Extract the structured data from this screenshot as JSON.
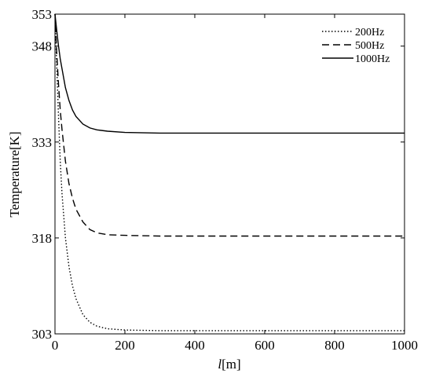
{
  "chart_data": {
    "type": "line",
    "title": "",
    "xlabel_italic": "l",
    "xlabel_rest": "[m]",
    "ylabel": "Temperature[K]",
    "xlim": [
      0,
      1000
    ],
    "ylim": [
      303,
      353
    ],
    "xticks": [
      0,
      200,
      400,
      600,
      800,
      1000
    ],
    "yticks": [
      303,
      318,
      333,
      348,
      353
    ],
    "grid": false,
    "legend_position": "top-right",
    "series": [
      {
        "name": "200Hz",
        "style": "dotted",
        "x": [
          0,
          5,
          10,
          15,
          20,
          30,
          40,
          50,
          60,
          80,
          100,
          120,
          150,
          200,
          300,
          400,
          500,
          600,
          700,
          800,
          900,
          1000
        ],
        "y": [
          353,
          345,
          337,
          330,
          325,
          318,
          313.5,
          310.5,
          308.5,
          306,
          304.8,
          304.2,
          303.8,
          303.6,
          303.5,
          303.5,
          303.5,
          303.5,
          303.5,
          303.5,
          303.5,
          303.5
        ]
      },
      {
        "name": "500Hz",
        "style": "dashed",
        "x": [
          0,
          5,
          10,
          15,
          20,
          30,
          40,
          50,
          60,
          80,
          100,
          120,
          150,
          200,
          300,
          400,
          500,
          600,
          700,
          800,
          900,
          1000
        ],
        "y": [
          353,
          347,
          342,
          338,
          335,
          330,
          326.5,
          324.2,
          322.5,
          320.5,
          319.3,
          318.8,
          318.5,
          318.4,
          318.3,
          318.3,
          318.3,
          318.3,
          318.3,
          318.3,
          318.3,
          318.3
        ]
      },
      {
        "name": "1000Hz",
        "style": "solid",
        "x": [
          0,
          5,
          10,
          15,
          20,
          30,
          40,
          50,
          60,
          80,
          100,
          120,
          150,
          200,
          300,
          400,
          500,
          600,
          700,
          800,
          900,
          1000
        ],
        "y": [
          353,
          350.5,
          348,
          346,
          344.5,
          341.5,
          339.5,
          338,
          337,
          335.8,
          335.2,
          334.9,
          334.7,
          334.5,
          334.4,
          334.4,
          334.4,
          334.4,
          334.4,
          334.4,
          334.4,
          334.4
        ]
      }
    ]
  }
}
